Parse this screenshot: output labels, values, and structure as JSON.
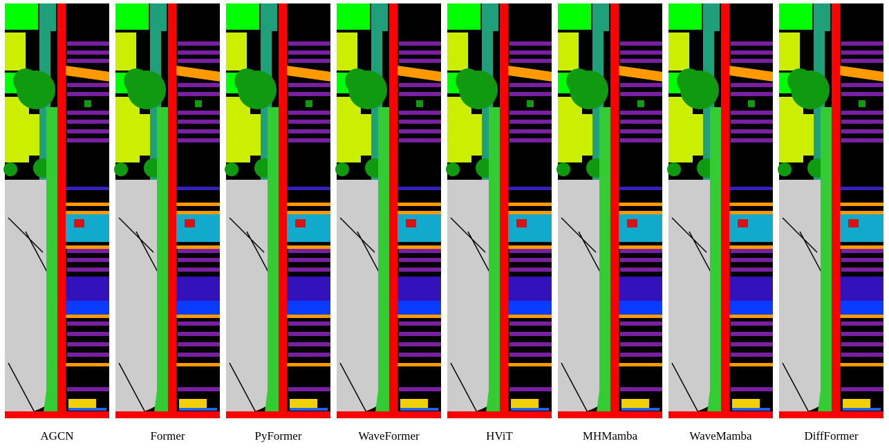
{
  "captions": [
    "AGCN",
    "Former",
    "PyFormer",
    "WaveFormer",
    "HViT",
    "MHMamba",
    "WaveMamba",
    "DiffFormer"
  ]
}
